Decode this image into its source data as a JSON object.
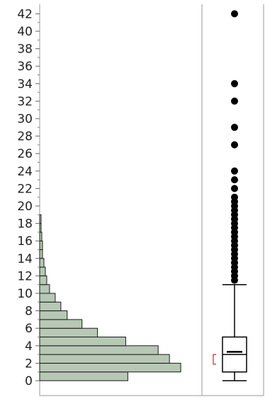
{
  "chart_data": {
    "type": "bar",
    "orientation": "horizontal",
    "yaxis": {
      "range": [
        -1,
        43
      ],
      "ticks": [
        0,
        2,
        4,
        6,
        8,
        10,
        12,
        14,
        16,
        18,
        20,
        22,
        24,
        26,
        28,
        30,
        32,
        34,
        36,
        38,
        40,
        42
      ],
      "tick_labels": [
        "0",
        "2",
        "4",
        "6",
        "8",
        "10",
        "12",
        "14",
        "16",
        "18",
        "20",
        "22",
        "24",
        "26",
        "28",
        "30",
        "32",
        "34",
        "36",
        "38",
        "40",
        "42"
      ],
      "title": ""
    },
    "histogram": {
      "bin_width": 1,
      "bars": [
        {
          "bin_start": 0,
          "count": 125
        },
        {
          "bin_start": 1,
          "count": 200
        },
        {
          "bin_start": 2,
          "count": 184
        },
        {
          "bin_start": 3,
          "count": 168
        },
        {
          "bin_start": 4,
          "count": 122
        },
        {
          "bin_start": 5,
          "count": 82
        },
        {
          "bin_start": 6,
          "count": 60
        },
        {
          "bin_start": 7,
          "count": 39
        },
        {
          "bin_start": 8,
          "count": 30
        },
        {
          "bin_start": 9,
          "count": 22
        },
        {
          "bin_start": 10,
          "count": 14
        },
        {
          "bin_start": 11,
          "count": 10
        },
        {
          "bin_start": 12,
          "count": 8
        },
        {
          "bin_start": 13,
          "count": 6
        },
        {
          "bin_start": 14,
          "count": 4
        },
        {
          "bin_start": 15,
          "count": 4
        },
        {
          "bin_start": 16,
          "count": 3
        },
        {
          "bin_start": 17,
          "count": 2
        },
        {
          "bin_start": 18,
          "count": 2
        }
      ],
      "count_max": 215,
      "bar_color": "#b7c8b5"
    },
    "boxplot": {
      "min": 0,
      "q1": 1,
      "median": 3,
      "mean": 3.3,
      "q3": 5,
      "whisker_high": 11,
      "ci_low": 1.9,
      "ci_high": 3.0,
      "outliers": [
        11.5,
        12,
        12.5,
        13,
        13.5,
        14,
        14.5,
        15,
        15.5,
        16,
        16.5,
        17,
        17.5,
        18,
        18.5,
        19,
        19.5,
        20,
        20.5,
        21,
        22,
        23,
        24,
        27,
        29,
        32,
        34,
        42
      ],
      "ci_color": "#d9485c"
    },
    "grid": false,
    "legend": "none"
  }
}
